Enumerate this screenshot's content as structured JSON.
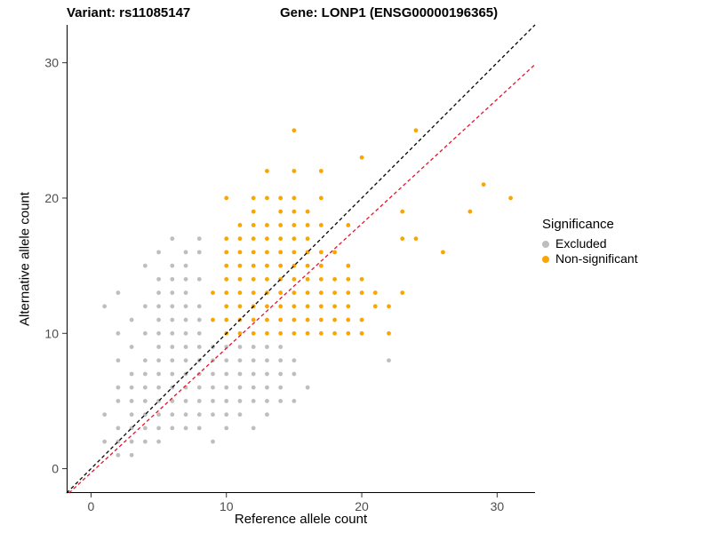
{
  "title_left": "Variant: rs11085147",
  "title_right": "Gene: LONP1 (ENSG00000196365)",
  "axes": {
    "x_label": "Reference allele count",
    "y_label": "Alternative allele count",
    "x_ticks": [
      0,
      10,
      20,
      30
    ],
    "y_ticks": [
      0,
      10,
      20,
      30
    ]
  },
  "legend": {
    "title": "Significance",
    "items": [
      {
        "label": "Excluded",
        "color": "#BEBEBE"
      },
      {
        "label": "Non-significant",
        "color": "#F9A602"
      }
    ]
  },
  "chart_data": {
    "type": "scatter",
    "title": "Variant: rs11085147 — Gene: LONP1 (ENSG00000196365)",
    "xlabel": "Reference allele count",
    "ylabel": "Alternative allele count",
    "xlim": [
      -1.8,
      32.8
    ],
    "ylim": [
      -1.8,
      32.8
    ],
    "grid": false,
    "legend_position": "right",
    "reference_lines": [
      {
        "name": "identity",
        "style": "dashed",
        "color": "#000000",
        "slope": 1.0,
        "intercept": 0.0
      },
      {
        "name": "fit",
        "style": "dashed",
        "color": "#E8112D",
        "slope": 0.92,
        "intercept": -0.3
      }
    ],
    "series": [
      {
        "name": "Excluded",
        "color": "#BEBEBE",
        "points": [
          [
            2,
            1
          ],
          [
            3,
            1
          ],
          [
            1,
            2
          ],
          [
            2,
            2
          ],
          [
            3,
            2
          ],
          [
            4,
            2
          ],
          [
            5,
            2
          ],
          [
            9,
            2
          ],
          [
            2,
            3
          ],
          [
            3,
            3
          ],
          [
            4,
            3
          ],
          [
            5,
            3
          ],
          [
            6,
            3
          ],
          [
            7,
            3
          ],
          [
            8,
            3
          ],
          [
            10,
            3
          ],
          [
            12,
            3
          ],
          [
            1,
            4
          ],
          [
            3,
            4
          ],
          [
            4,
            4
          ],
          [
            5,
            4
          ],
          [
            6,
            4
          ],
          [
            7,
            4
          ],
          [
            8,
            4
          ],
          [
            9,
            4
          ],
          [
            10,
            4
          ],
          [
            11,
            4
          ],
          [
            13,
            4
          ],
          [
            2,
            5
          ],
          [
            3,
            5
          ],
          [
            4,
            5
          ],
          [
            5,
            5
          ],
          [
            6,
            5
          ],
          [
            7,
            5
          ],
          [
            8,
            5
          ],
          [
            9,
            5
          ],
          [
            10,
            5
          ],
          [
            11,
            5
          ],
          [
            12,
            5
          ],
          [
            13,
            5
          ],
          [
            14,
            5
          ],
          [
            15,
            5
          ],
          [
            2,
            6
          ],
          [
            3,
            6
          ],
          [
            4,
            6
          ],
          [
            5,
            6
          ],
          [
            6,
            6
          ],
          [
            7,
            6
          ],
          [
            8,
            6
          ],
          [
            9,
            6
          ],
          [
            10,
            6
          ],
          [
            11,
            6
          ],
          [
            12,
            6
          ],
          [
            13,
            6
          ],
          [
            14,
            6
          ],
          [
            16,
            6
          ],
          [
            3,
            7
          ],
          [
            4,
            7
          ],
          [
            5,
            7
          ],
          [
            6,
            7
          ],
          [
            7,
            7
          ],
          [
            8,
            7
          ],
          [
            9,
            7
          ],
          [
            10,
            7
          ],
          [
            11,
            7
          ],
          [
            12,
            7
          ],
          [
            13,
            7
          ],
          [
            14,
            7
          ],
          [
            15,
            7
          ],
          [
            2,
            8
          ],
          [
            4,
            8
          ],
          [
            5,
            8
          ],
          [
            6,
            8
          ],
          [
            7,
            8
          ],
          [
            8,
            8
          ],
          [
            9,
            8
          ],
          [
            10,
            8
          ],
          [
            11,
            8
          ],
          [
            12,
            8
          ],
          [
            13,
            8
          ],
          [
            14,
            8
          ],
          [
            15,
            8
          ],
          [
            22,
            8
          ],
          [
            3,
            9
          ],
          [
            5,
            9
          ],
          [
            6,
            9
          ],
          [
            7,
            9
          ],
          [
            8,
            9
          ],
          [
            9,
            9
          ],
          [
            10,
            9
          ],
          [
            11,
            9
          ],
          [
            12,
            9
          ],
          [
            13,
            9
          ],
          [
            14,
            9
          ],
          [
            2,
            10
          ],
          [
            4,
            10
          ],
          [
            5,
            10
          ],
          [
            6,
            10
          ],
          [
            7,
            10
          ],
          [
            8,
            10
          ],
          [
            3,
            11
          ],
          [
            5,
            11
          ],
          [
            6,
            11
          ],
          [
            7,
            11
          ],
          [
            8,
            11
          ],
          [
            1,
            12
          ],
          [
            4,
            12
          ],
          [
            5,
            12
          ],
          [
            6,
            12
          ],
          [
            7,
            12
          ],
          [
            8,
            12
          ],
          [
            2,
            13
          ],
          [
            5,
            13
          ],
          [
            6,
            13
          ],
          [
            7,
            13
          ],
          [
            5,
            14
          ],
          [
            6,
            14
          ],
          [
            7,
            14
          ],
          [
            8,
            14
          ],
          [
            4,
            15
          ],
          [
            6,
            15
          ],
          [
            7,
            15
          ],
          [
            5,
            16
          ],
          [
            7,
            16
          ],
          [
            8,
            16
          ],
          [
            6,
            17
          ],
          [
            8,
            17
          ]
        ]
      },
      {
        "name": "Non-significant",
        "color": "#F9A602",
        "points": [
          [
            10,
            10
          ],
          [
            11,
            10
          ],
          [
            12,
            10
          ],
          [
            13,
            10
          ],
          [
            14,
            10
          ],
          [
            15,
            10
          ],
          [
            16,
            10
          ],
          [
            17,
            10
          ],
          [
            18,
            10
          ],
          [
            19,
            10
          ],
          [
            20,
            10
          ],
          [
            22,
            10
          ],
          [
            9,
            11
          ],
          [
            10,
            11
          ],
          [
            11,
            11
          ],
          [
            12,
            11
          ],
          [
            13,
            11
          ],
          [
            14,
            11
          ],
          [
            15,
            11
          ],
          [
            16,
            11
          ],
          [
            17,
            11
          ],
          [
            18,
            11
          ],
          [
            19,
            11
          ],
          [
            20,
            11
          ],
          [
            10,
            12
          ],
          [
            11,
            12
          ],
          [
            12,
            12
          ],
          [
            13,
            12
          ],
          [
            14,
            12
          ],
          [
            15,
            12
          ],
          [
            16,
            12
          ],
          [
            17,
            12
          ],
          [
            18,
            12
          ],
          [
            19,
            12
          ],
          [
            21,
            12
          ],
          [
            22,
            12
          ],
          [
            9,
            13
          ],
          [
            10,
            13
          ],
          [
            11,
            13
          ],
          [
            12,
            13
          ],
          [
            13,
            13
          ],
          [
            14,
            13
          ],
          [
            15,
            13
          ],
          [
            16,
            13
          ],
          [
            17,
            13
          ],
          [
            18,
            13
          ],
          [
            19,
            13
          ],
          [
            20,
            13
          ],
          [
            21,
            13
          ],
          [
            23,
            13
          ],
          [
            10,
            14
          ],
          [
            11,
            14
          ],
          [
            12,
            14
          ],
          [
            13,
            14
          ],
          [
            14,
            14
          ],
          [
            15,
            14
          ],
          [
            16,
            14
          ],
          [
            17,
            14
          ],
          [
            18,
            14
          ],
          [
            19,
            14
          ],
          [
            20,
            14
          ],
          [
            10,
            15
          ],
          [
            11,
            15
          ],
          [
            12,
            15
          ],
          [
            13,
            15
          ],
          [
            14,
            15
          ],
          [
            15,
            15
          ],
          [
            16,
            15
          ],
          [
            17,
            15
          ],
          [
            19,
            15
          ],
          [
            10,
            16
          ],
          [
            11,
            16
          ],
          [
            12,
            16
          ],
          [
            13,
            16
          ],
          [
            14,
            16
          ],
          [
            15,
            16
          ],
          [
            16,
            16
          ],
          [
            17,
            16
          ],
          [
            18,
            16
          ],
          [
            26,
            16
          ],
          [
            10,
            17
          ],
          [
            11,
            17
          ],
          [
            12,
            17
          ],
          [
            13,
            17
          ],
          [
            14,
            17
          ],
          [
            15,
            17
          ],
          [
            16,
            17
          ],
          [
            23,
            17
          ],
          [
            24,
            17
          ],
          [
            11,
            18
          ],
          [
            12,
            18
          ],
          [
            13,
            18
          ],
          [
            14,
            18
          ],
          [
            15,
            18
          ],
          [
            16,
            18
          ],
          [
            17,
            18
          ],
          [
            19,
            18
          ],
          [
            12,
            19
          ],
          [
            14,
            19
          ],
          [
            15,
            19
          ],
          [
            16,
            19
          ],
          [
            23,
            19
          ],
          [
            28,
            19
          ],
          [
            10,
            20
          ],
          [
            12,
            20
          ],
          [
            13,
            20
          ],
          [
            14,
            20
          ],
          [
            15,
            20
          ],
          [
            17,
            20
          ],
          [
            31,
            20
          ],
          [
            29,
            21
          ],
          [
            13,
            22
          ],
          [
            15,
            22
          ],
          [
            17,
            22
          ],
          [
            20,
            23
          ],
          [
            15,
            25
          ],
          [
            24,
            25
          ]
        ]
      }
    ]
  }
}
